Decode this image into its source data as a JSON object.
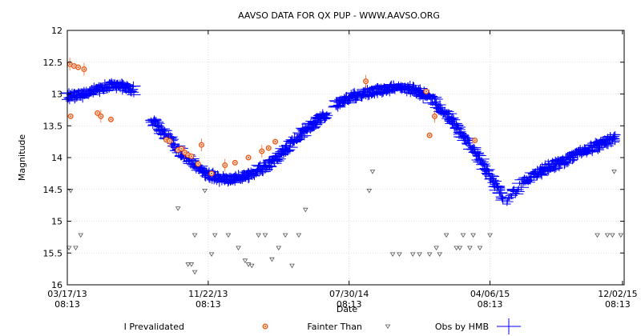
{
  "chart_data": {
    "type": "scatter",
    "title": "AAVSO DATA FOR QX PUP - WWW.AAVSO.ORG",
    "xlabel": "Date",
    "ylabel": "Magnitude",
    "y_inverted": true,
    "ylim": [
      16,
      12
    ],
    "y_ticks": [
      "12",
      "12.5",
      "13",
      "13.5",
      "14",
      "14.5",
      "15",
      "15.5",
      "16"
    ],
    "x_ticks": [
      {
        "date": "03/17/13",
        "time": "08:13"
      },
      {
        "date": "11/22/13",
        "time": "08:13"
      },
      {
        "date": "07/30/14",
        "time": "08:13"
      },
      {
        "date": "04/06/15",
        "time": "08:13"
      },
      {
        "date": "12/02/15",
        "time": "08:13"
      }
    ],
    "grid": true,
    "legend_position": "bottom",
    "series": [
      {
        "name": "I Prevalidated",
        "color": "#ee5511",
        "marker": "open-circle",
        "points": [
          [
            0.15,
            12.53
          ],
          [
            0.4,
            12.56
          ],
          [
            0.65,
            12.58
          ],
          [
            1.0,
            12.61
          ],
          [
            0.2,
            13.35
          ],
          [
            1.8,
            13.3
          ],
          [
            2.0,
            13.35
          ],
          [
            2.6,
            13.4
          ],
          [
            5.9,
            13.72
          ],
          [
            6.1,
            13.74
          ],
          [
            6.6,
            13.88
          ],
          [
            6.8,
            13.86
          ],
          [
            7.0,
            13.92
          ],
          [
            7.2,
            13.96
          ],
          [
            7.4,
            13.98
          ],
          [
            8.0,
            13.8
          ],
          [
            7.8,
            14.1
          ],
          [
            8.6,
            14.25
          ],
          [
            9.4,
            14.12
          ],
          [
            10.0,
            14.08
          ],
          [
            10.8,
            14.0
          ],
          [
            11.6,
            13.9
          ],
          [
            12.0,
            13.85
          ],
          [
            12.4,
            13.75
          ],
          [
            17.8,
            12.8
          ],
          [
            21.4,
            12.96
          ],
          [
            21.6,
            13.65
          ],
          [
            21.9,
            13.35
          ],
          [
            24.3,
            13.73
          ]
        ]
      },
      {
        "name": "Fainter Than",
        "color": "#555555",
        "marker": "open-triangle-down",
        "points": [
          [
            0.1,
            15.42
          ],
          [
            0.2,
            14.52
          ],
          [
            0.5,
            15.42
          ],
          [
            0.8,
            15.22
          ],
          [
            6.6,
            14.8
          ],
          [
            7.6,
            15.22
          ],
          [
            7.2,
            15.68
          ],
          [
            7.4,
            15.68
          ],
          [
            7.6,
            15.8
          ],
          [
            8.2,
            14.52
          ],
          [
            8.6,
            15.52
          ],
          [
            8.8,
            15.22
          ],
          [
            9.6,
            15.22
          ],
          [
            10.2,
            15.42
          ],
          [
            10.6,
            15.62
          ],
          [
            10.8,
            15.68
          ],
          [
            11.0,
            15.7
          ],
          [
            11.4,
            15.22
          ],
          [
            11.8,
            15.22
          ],
          [
            12.2,
            15.6
          ],
          [
            12.6,
            15.42
          ],
          [
            13.0,
            15.22
          ],
          [
            13.4,
            15.7
          ],
          [
            13.8,
            15.22
          ],
          [
            14.2,
            14.82
          ],
          [
            18.2,
            14.22
          ],
          [
            18.0,
            14.52
          ],
          [
            19.4,
            15.52
          ],
          [
            19.8,
            15.52
          ],
          [
            20.6,
            15.52
          ],
          [
            21.0,
            15.52
          ],
          [
            21.6,
            15.52
          ],
          [
            22.0,
            15.42
          ],
          [
            22.2,
            15.52
          ],
          [
            22.6,
            15.22
          ],
          [
            23.2,
            15.42
          ],
          [
            23.6,
            15.22
          ],
          [
            23.4,
            15.42
          ],
          [
            24.2,
            15.22
          ],
          [
            24.0,
            15.42
          ],
          [
            24.6,
            15.42
          ],
          [
            25.2,
            15.22
          ],
          [
            31.6,
            15.22
          ],
          [
            32.2,
            15.22
          ],
          [
            32.5,
            15.22
          ],
          [
            32.6,
            14.22
          ],
          [
            33.0,
            15.22
          ]
        ]
      },
      {
        "name": "Obs by HMB",
        "color": "#0000ff",
        "marker": "plus",
        "curve": [
          [
            0.0,
            13.05
          ],
          [
            0.5,
            13.03
          ],
          [
            1.0,
            13.0
          ],
          [
            1.5,
            12.95
          ],
          [
            2.0,
            12.92
          ],
          [
            2.5,
            12.88
          ],
          [
            3.0,
            12.87
          ],
          [
            3.5,
            12.9
          ],
          [
            4.0,
            12.95
          ],
          [
            5.0,
            13.4
          ],
          [
            5.5,
            13.55
          ],
          [
            6.0,
            13.7
          ],
          [
            6.5,
            13.85
          ],
          [
            7.0,
            13.98
          ],
          [
            7.5,
            14.1
          ],
          [
            8.0,
            14.2
          ],
          [
            8.5,
            14.28
          ],
          [
            9.0,
            14.32
          ],
          [
            9.5,
            14.34
          ],
          [
            10.0,
            14.33
          ],
          [
            10.5,
            14.3
          ],
          [
            11.0,
            14.25
          ],
          [
            11.5,
            14.18
          ],
          [
            12.0,
            14.1
          ],
          [
            12.5,
            14.0
          ],
          [
            13.0,
            13.88
          ],
          [
            13.5,
            13.75
          ],
          [
            14.0,
            13.62
          ],
          [
            14.5,
            13.5
          ],
          [
            15.0,
            13.4
          ],
          [
            15.5,
            13.33
          ],
          [
            16.0,
            13.15
          ],
          [
            16.5,
            13.1
          ],
          [
            17.0,
            13.05
          ],
          [
            17.5,
            13.0
          ],
          [
            18.0,
            12.97
          ],
          [
            18.5,
            12.94
          ],
          [
            19.0,
            12.92
          ],
          [
            19.5,
            12.9
          ],
          [
            20.0,
            12.9
          ],
          [
            20.5,
            12.92
          ],
          [
            21.0,
            12.97
          ],
          [
            21.5,
            13.05
          ],
          [
            22.0,
            13.15
          ],
          [
            22.5,
            13.3
          ],
          [
            23.0,
            13.45
          ],
          [
            23.5,
            13.62
          ],
          [
            24.0,
            13.8
          ],
          [
            24.5,
            14.0
          ],
          [
            25.0,
            14.2
          ],
          [
            25.5,
            14.4
          ],
          [
            26.0,
            14.62
          ],
          [
            26.2,
            14.7
          ],
          [
            27.2,
            14.35
          ],
          [
            27.7,
            14.3
          ],
          [
            28.2,
            14.22
          ],
          [
            28.7,
            14.15
          ],
          [
            29.2,
            14.1
          ],
          [
            29.7,
            14.05
          ],
          [
            30.2,
            13.98
          ],
          [
            30.7,
            13.92
          ],
          [
            31.2,
            13.85
          ],
          [
            31.7,
            13.8
          ],
          [
            32.2,
            13.75
          ],
          [
            32.7,
            13.7
          ],
          [
            33.1,
            13.66
          ]
        ],
        "segments": [
          [
            0,
            8
          ],
          [
            9,
            30
          ],
          [
            31,
            51
          ],
          [
            52,
            64
          ]
        ]
      }
    ]
  }
}
